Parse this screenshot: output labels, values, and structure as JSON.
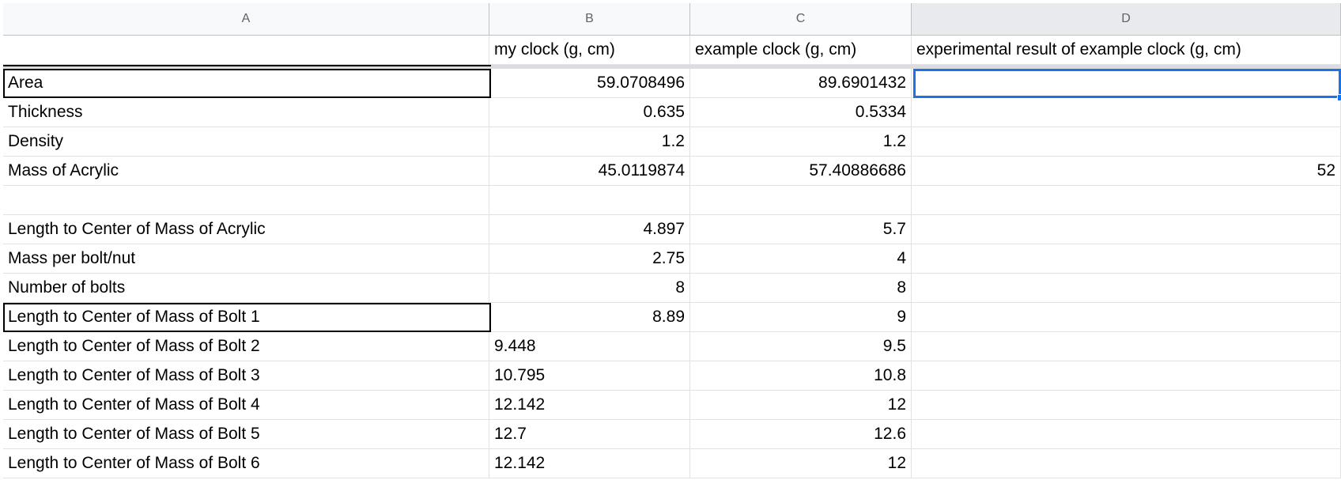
{
  "columns": [
    "A",
    "B",
    "C",
    "D"
  ],
  "header_row": [
    "",
    "my clock (g, cm)",
    "example clock (g, cm)",
    "experimental result of example clock (g, cm)"
  ],
  "rows": [
    {
      "a": "Area",
      "b": "59.0708496",
      "b_align": "num",
      "c": "89.6901432",
      "d": ""
    },
    {
      "a": "Thickness",
      "b": "0.635",
      "b_align": "num",
      "c": "0.5334",
      "d": ""
    },
    {
      "a": "Density",
      "b": "1.2",
      "b_align": "num",
      "c": "1.2",
      "d": ""
    },
    {
      "a": "Mass of Acrylic",
      "b": "45.0119874",
      "b_align": "num",
      "c": "57.40886686",
      "d": "52"
    },
    {
      "a": "",
      "b": "",
      "b_align": "num",
      "c": "",
      "d": ""
    },
    {
      "a": "Length to Center of Mass of Acrylic",
      "b": "4.897",
      "b_align": "num",
      "c": "5.7",
      "d": ""
    },
    {
      "a": "Mass per bolt/nut",
      "b": "2.75",
      "b_align": "num",
      "c": "4",
      "d": ""
    },
    {
      "a": "Number of bolts",
      "b": "8",
      "b_align": "num",
      "c": "8",
      "d": ""
    },
    {
      "a": "Length to Center of Mass of Bolt 1",
      "b": "8.89",
      "b_align": "num",
      "c": "9",
      "d": ""
    },
    {
      "a": "Length to Center of Mass of Bolt 2",
      "b": "9.448",
      "b_align": "text",
      "c": "9.5",
      "d": ""
    },
    {
      "a": "Length to Center of Mass of Bolt 3",
      "b": "10.795",
      "b_align": "text",
      "c": "10.8",
      "d": ""
    },
    {
      "a": "Length to Center of Mass of Bolt 4",
      "b": "12.142",
      "b_align": "text",
      "c": "12",
      "d": ""
    },
    {
      "a": "Length to Center of Mass of Bolt 5",
      "b": "12.7",
      "b_align": "text",
      "c": "12.6",
      "d": ""
    },
    {
      "a": "Length to Center of Mass of Bolt 6",
      "b": "12.142",
      "b_align": "text",
      "c": "12",
      "d": ""
    }
  ],
  "selected_cell": "D2",
  "colors": {
    "selection": "#1a73e8",
    "header_bg": "#f8f9fa",
    "gridline": "#e2e2e2"
  }
}
